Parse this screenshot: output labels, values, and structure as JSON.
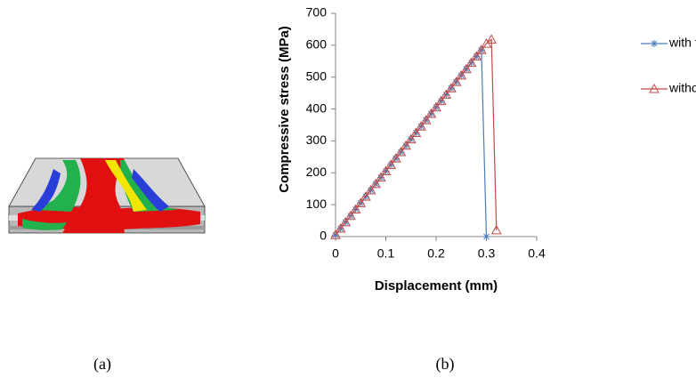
{
  "chart_data": {
    "type": "line",
    "x_label": "Displacement (mm)",
    "y_label": "Compressive stress (MPa)",
    "xlim": [
      0,
      0.4
    ],
    "xticks": [
      0,
      0.1,
      0.2,
      0.3,
      0.4
    ],
    "ylim": [
      0,
      700
    ],
    "yticks": [
      0,
      100,
      200,
      300,
      400,
      500,
      600,
      700
    ],
    "grid": false,
    "legend": "right",
    "series": [
      {
        "name": "with fibre failure",
        "color": "#4a7ebb",
        "marker": "star",
        "x": [
          0,
          0.01,
          0.02,
          0.03,
          0.04,
          0.05,
          0.06,
          0.07,
          0.08,
          0.09,
          0.1,
          0.11,
          0.12,
          0.13,
          0.14,
          0.15,
          0.16,
          0.17,
          0.18,
          0.19,
          0.2,
          0.21,
          0.22,
          0.23,
          0.24,
          0.25,
          0.26,
          0.27,
          0.28,
          0.29,
          0.3
        ],
        "values": [
          5,
          25,
          45,
          65,
          85,
          105,
          125,
          145,
          165,
          185,
          205,
          225,
          245,
          265,
          285,
          305,
          325,
          345,
          365,
          385,
          405,
          425,
          445,
          465,
          485,
          505,
          525,
          545,
          565,
          585,
          0
        ]
      },
      {
        "name": "without fibre failure",
        "color": "#be4b48",
        "marker": "triangle",
        "x": [
          0,
          0.01,
          0.02,
          0.03,
          0.04,
          0.05,
          0.06,
          0.07,
          0.08,
          0.09,
          0.1,
          0.11,
          0.12,
          0.13,
          0.14,
          0.15,
          0.16,
          0.17,
          0.18,
          0.19,
          0.2,
          0.21,
          0.22,
          0.23,
          0.24,
          0.25,
          0.26,
          0.27,
          0.28,
          0.29,
          0.3,
          0.31,
          0.32
        ],
        "values": [
          5,
          25,
          45,
          65,
          85,
          105,
          125,
          145,
          165,
          185,
          205,
          225,
          245,
          265,
          285,
          305,
          325,
          345,
          365,
          385,
          405,
          425,
          445,
          465,
          485,
          505,
          525,
          545,
          565,
          585,
          605,
          618,
          20
        ]
      }
    ]
  },
  "panel_labels": [
    "(a)",
    "(b)"
  ]
}
